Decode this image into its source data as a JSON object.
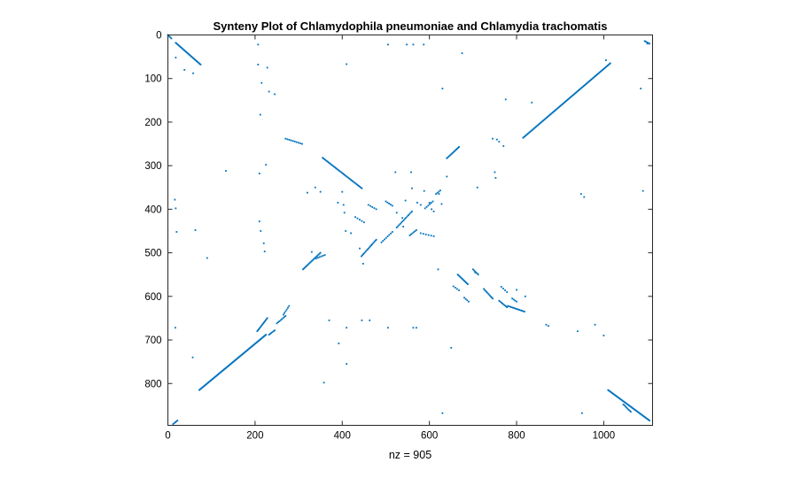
{
  "chart_data": {
    "type": "scatter",
    "title": "Synteny Plot of Chlamydophila pneumoniae and Chlamydia trachomatis",
    "xlabel": "nz = 905",
    "ylabel": "",
    "xlim": [
      0,
      1112
    ],
    "ylim": [
      896,
      0
    ],
    "y_reversed": true,
    "grid": false,
    "marker_color": "#0072BD",
    "x_ticks": [
      0,
      200,
      400,
      600,
      800,
      1000
    ],
    "y_ticks": [
      0,
      100,
      200,
      300,
      400,
      500,
      600,
      700,
      800
    ],
    "segments": [
      {
        "x0": 0,
        "y0": 0,
        "x1": 8,
        "y1": 8,
        "n": 5
      },
      {
        "x0": 18,
        "y0": 18,
        "x1": 75,
        "y1": 68,
        "n": 32
      },
      {
        "x0": 1094,
        "y0": 14,
        "x1": 1105,
        "y1": 20,
        "n": 5
      },
      {
        "x0": 815,
        "y0": 236,
        "x1": 1015,
        "y1": 65,
        "n": 100
      },
      {
        "x0": 640,
        "y0": 283,
        "x1": 668,
        "y1": 257,
        "n": 14
      },
      {
        "x0": 355,
        "y0": 282,
        "x1": 445,
        "y1": 352,
        "n": 40
      },
      {
        "x0": 270,
        "y0": 238,
        "x1": 308,
        "y1": 250,
        "n": 10
      },
      {
        "x0": 310,
        "y0": 538,
        "x1": 350,
        "y1": 500,
        "n": 20
      },
      {
        "x0": 340,
        "y0": 513,
        "x1": 360,
        "y1": 505,
        "n": 6
      },
      {
        "x0": 444,
        "y0": 508,
        "x1": 478,
        "y1": 470,
        "n": 16
      },
      {
        "x0": 490,
        "y0": 476,
        "x1": 515,
        "y1": 452,
        "n": 8
      },
      {
        "x0": 525,
        "y0": 442,
        "x1": 560,
        "y1": 405,
        "n": 14
      },
      {
        "x0": 555,
        "y0": 460,
        "x1": 570,
        "y1": 448,
        "n": 6
      },
      {
        "x0": 580,
        "y0": 455,
        "x1": 610,
        "y1": 462,
        "n": 6
      },
      {
        "x0": 590,
        "y0": 398,
        "x1": 608,
        "y1": 382,
        "n": 6
      },
      {
        "x0": 615,
        "y0": 365,
        "x1": 625,
        "y1": 357,
        "n": 4
      },
      {
        "x0": 72,
        "y0": 815,
        "x1": 225,
        "y1": 688,
        "n": 90
      },
      {
        "x0": 205,
        "y0": 680,
        "x1": 228,
        "y1": 650,
        "n": 14
      },
      {
        "x0": 232,
        "y0": 688,
        "x1": 245,
        "y1": 678,
        "n": 6
      },
      {
        "x0": 250,
        "y0": 662,
        "x1": 270,
        "y1": 645,
        "n": 8
      },
      {
        "x0": 265,
        "y0": 642,
        "x1": 278,
        "y1": 622,
        "n": 6
      },
      {
        "x0": 665,
        "y0": 550,
        "x1": 688,
        "y1": 572,
        "n": 12
      },
      {
        "x0": 655,
        "y0": 577,
        "x1": 668,
        "y1": 586,
        "n": 4
      },
      {
        "x0": 680,
        "y0": 603,
        "x1": 690,
        "y1": 612,
        "n": 4
      },
      {
        "x0": 700,
        "y0": 538,
        "x1": 712,
        "y1": 550,
        "n": 6
      },
      {
        "x0": 725,
        "y0": 583,
        "x1": 745,
        "y1": 605,
        "n": 10
      },
      {
        "x0": 760,
        "y0": 610,
        "x1": 778,
        "y1": 625,
        "n": 8
      },
      {
        "x0": 780,
        "y0": 622,
        "x1": 818,
        "y1": 635,
        "n": 14
      },
      {
        "x0": 765,
        "y0": 578,
        "x1": 778,
        "y1": 590,
        "n": 4
      },
      {
        "x0": 790,
        "y0": 605,
        "x1": 800,
        "y1": 612,
        "n": 4
      },
      {
        "x0": 1010,
        "y0": 815,
        "x1": 1105,
        "y1": 885,
        "n": 50
      },
      {
        "x0": 1045,
        "y0": 848,
        "x1": 1062,
        "y1": 865,
        "n": 8
      },
      {
        "x0": 12,
        "y0": 893,
        "x1": 22,
        "y1": 885,
        "n": 5
      },
      {
        "x0": 430,
        "y0": 418,
        "x1": 450,
        "y1": 430,
        "n": 5
      },
      {
        "x0": 500,
        "y0": 382,
        "x1": 515,
        "y1": 392,
        "n": 5
      },
      {
        "x0": 460,
        "y0": 390,
        "x1": 478,
        "y1": 400,
        "n": 5
      }
    ],
    "points": [
      [
        18,
        52
      ],
      [
        38,
        80
      ],
      [
        58,
        88
      ],
      [
        16,
        378
      ],
      [
        18,
        398
      ],
      [
        20,
        452
      ],
      [
        17,
        672
      ],
      [
        63,
        448
      ],
      [
        90,
        512
      ],
      [
        57,
        740
      ],
      [
        133,
        312
      ],
      [
        207,
        22
      ],
      [
        207,
        68
      ],
      [
        212,
        183
      ],
      [
        210,
        318
      ],
      [
        215,
        110
      ],
      [
        210,
        428
      ],
      [
        213,
        450
      ],
      [
        220,
        478
      ],
      [
        222,
        497
      ],
      [
        228,
        75
      ],
      [
        232,
        130
      ],
      [
        245,
        136
      ],
      [
        225,
        298
      ],
      [
        320,
        362
      ],
      [
        330,
        498
      ],
      [
        338,
        350
      ],
      [
        350,
        360
      ],
      [
        358,
        798
      ],
      [
        370,
        655
      ],
      [
        390,
        385
      ],
      [
        392,
        708
      ],
      [
        400,
        360
      ],
      [
        403,
        390
      ],
      [
        405,
        408
      ],
      [
        408,
        450
      ],
      [
        410,
        755
      ],
      [
        410,
        67
      ],
      [
        410,
        672
      ],
      [
        420,
        455
      ],
      [
        440,
        490
      ],
      [
        448,
        525
      ],
      [
        445,
        655
      ],
      [
        463,
        655
      ],
      [
        505,
        22
      ],
      [
        505,
        672
      ],
      [
        522,
        315
      ],
      [
        525,
        408
      ],
      [
        538,
        420
      ],
      [
        540,
        440
      ],
      [
        545,
        380
      ],
      [
        548,
        22
      ],
      [
        558,
        315
      ],
      [
        560,
        352
      ],
      [
        563,
        22
      ],
      [
        563,
        672
      ],
      [
        570,
        672
      ],
      [
        572,
        385
      ],
      [
        580,
        390
      ],
      [
        587,
        22
      ],
      [
        588,
        358
      ],
      [
        600,
        385
      ],
      [
        605,
        400
      ],
      [
        610,
        405
      ],
      [
        620,
        538
      ],
      [
        622,
        365
      ],
      [
        628,
        388
      ],
      [
        630,
        123
      ],
      [
        630,
        868
      ],
      [
        640,
        325
      ],
      [
        650,
        718
      ],
      [
        675,
        42
      ],
      [
        705,
        545
      ],
      [
        710,
        350
      ],
      [
        745,
        238
      ],
      [
        750,
        315
      ],
      [
        752,
        328
      ],
      [
        755,
        240
      ],
      [
        760,
        245
      ],
      [
        770,
        255
      ],
      [
        775,
        148
      ],
      [
        800,
        585
      ],
      [
        820,
        600
      ],
      [
        835,
        155
      ],
      [
        868,
        665
      ],
      [
        873,
        668
      ],
      [
        940,
        680
      ],
      [
        948,
        365
      ],
      [
        950,
        868
      ],
      [
        955,
        372
      ],
      [
        980,
        665
      ],
      [
        1000,
        690
      ],
      [
        1005,
        58
      ],
      [
        1085,
        123
      ],
      [
        1090,
        358
      ],
      [
        1100,
        20
      ]
    ]
  }
}
